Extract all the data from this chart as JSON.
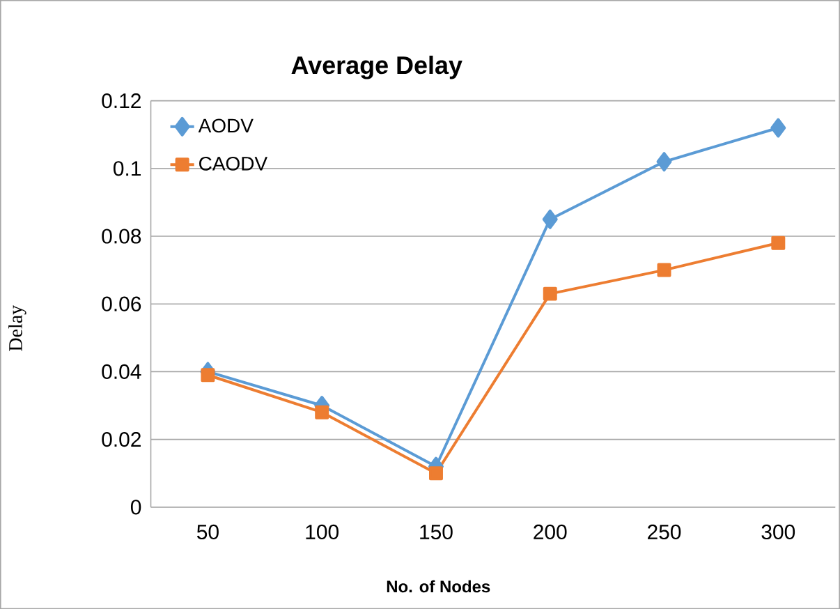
{
  "chart_data": {
    "type": "line",
    "title": "Average Delay",
    "xlabel": "No. of Nodes",
    "ylabel": "Delay",
    "categories": [
      "50",
      "100",
      "150",
      "200",
      "250",
      "300"
    ],
    "series": [
      {
        "name": "AODV",
        "color": "#5b9bd5",
        "marker": "diamond",
        "values": [
          0.04,
          0.03,
          0.012,
          0.085,
          0.102,
          0.112
        ]
      },
      {
        "name": "CAODV",
        "color": "#ed7d31",
        "marker": "square",
        "values": [
          0.039,
          0.028,
          0.01,
          0.063,
          0.07,
          0.078
        ]
      }
    ],
    "ylim": [
      0,
      0.12
    ],
    "yticks": [
      0,
      0.02,
      0.04,
      0.06,
      0.08,
      0.1,
      0.12
    ],
    "grid": "y",
    "legend": "top left"
  }
}
